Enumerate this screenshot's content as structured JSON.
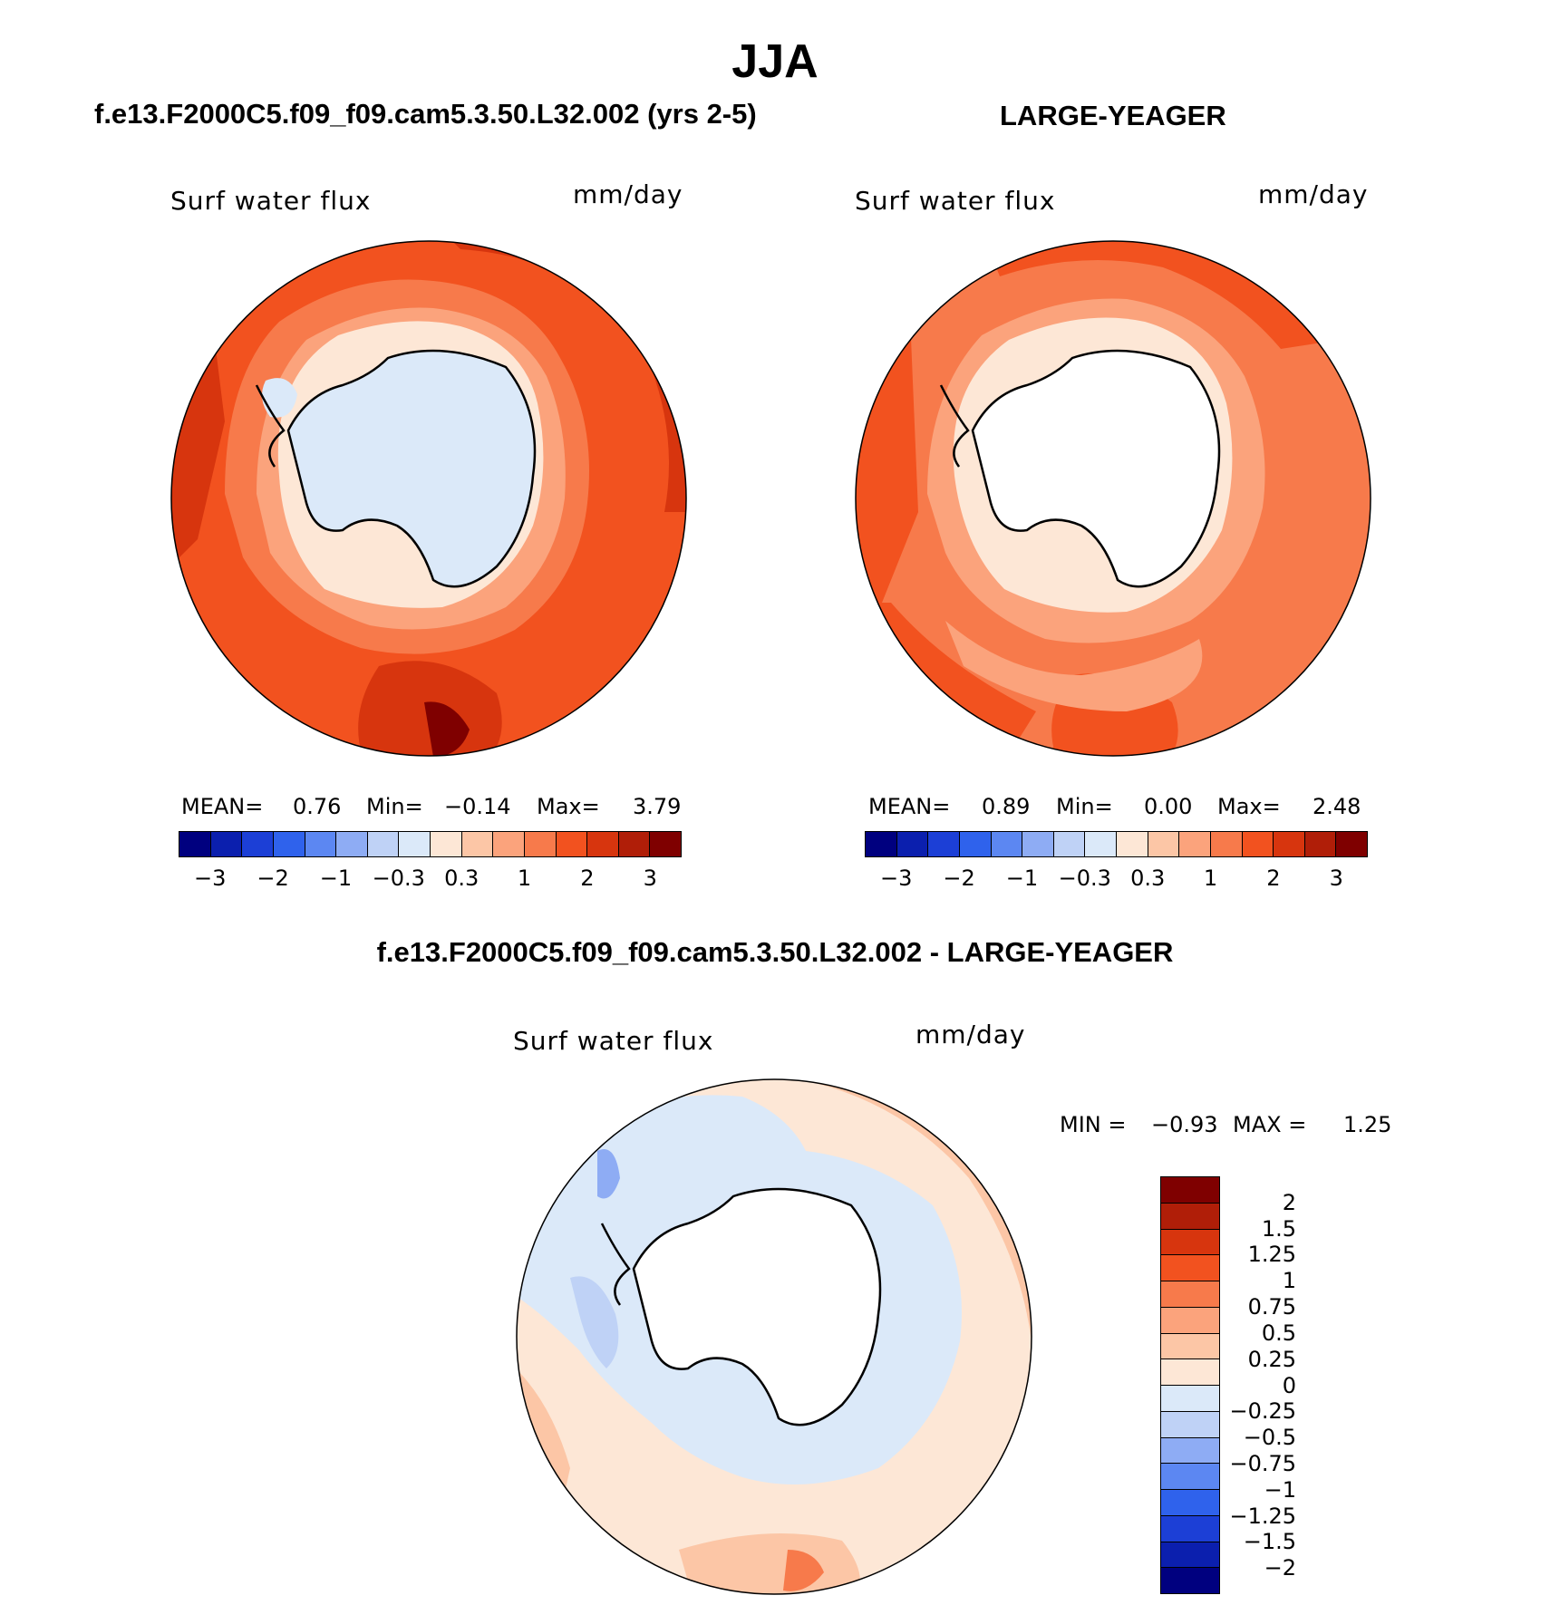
{
  "page_title": "JJA",
  "colors": {
    "abs_scale": [
      "#00007f",
      "#0b1fae",
      "#1c3fd6",
      "#2f62ec",
      "#5c87f2",
      "#8eacf4",
      "#bfd2f6",
      "#dbe9f9",
      "#fde7d6",
      "#fcc6a6",
      "#fba37c",
      "#f77a4b",
      "#f2521f",
      "#d7350e",
      "#b01e08",
      "#7f0000"
    ],
    "diff_scale": [
      "#7f0000",
      "#b01e08",
      "#d7350e",
      "#f2521f",
      "#f77a4b",
      "#fba37c",
      "#fcc6a6",
      "#fde7d6",
      "#dbe9f9",
      "#bfd2f6",
      "#8eacf4",
      "#5c87f2",
      "#2f62ec",
      "#1c3fd6",
      "#0b1fae",
      "#00007f"
    ]
  },
  "panels": {
    "model": {
      "case": "f.e13.F2000C5.f09_f09.cam5.3.50.L32.002 (yrs 2-5)",
      "variable": "Surf water flux",
      "units": "mm/day",
      "mean_label": "MEAN=",
      "mean": "0.76",
      "min_label": "Min=",
      "min": "−0.14",
      "max_label": "Max=",
      "max": "3.79",
      "ticks": [
        "−3",
        "−2",
        "−1",
        "−0.3",
        "0.3",
        "1",
        "2",
        "3"
      ]
    },
    "obs": {
      "case": "LARGE-YEAGER",
      "variable": "Surf water flux",
      "units": "mm/day",
      "mean_label": "MEAN=",
      "mean": "0.89",
      "min_label": "Min=",
      "min": "0.00",
      "max_label": "Max=",
      "max": "2.48",
      "ticks": [
        "−3",
        "−2",
        "−1",
        "−0.3",
        "0.3",
        "1",
        "2",
        "3"
      ]
    },
    "diff": {
      "case": "f.e13.F2000C5.f09_f09.cam5.3.50.L32.002 - LARGE-YEAGER",
      "variable": "Surf water flux",
      "units": "mm/day",
      "min_label": "MIN =",
      "min": "−0.93",
      "max_label": "MAX =",
      "max": "1.25",
      "ticks": [
        "2",
        "1.5",
        "1.25",
        "1",
        "0.75",
        "0.5",
        "0.25",
        "0",
        "−0.25",
        "−0.5",
        "−0.75",
        "−1",
        "−1.25",
        "−1.5",
        "−2"
      ]
    }
  }
}
